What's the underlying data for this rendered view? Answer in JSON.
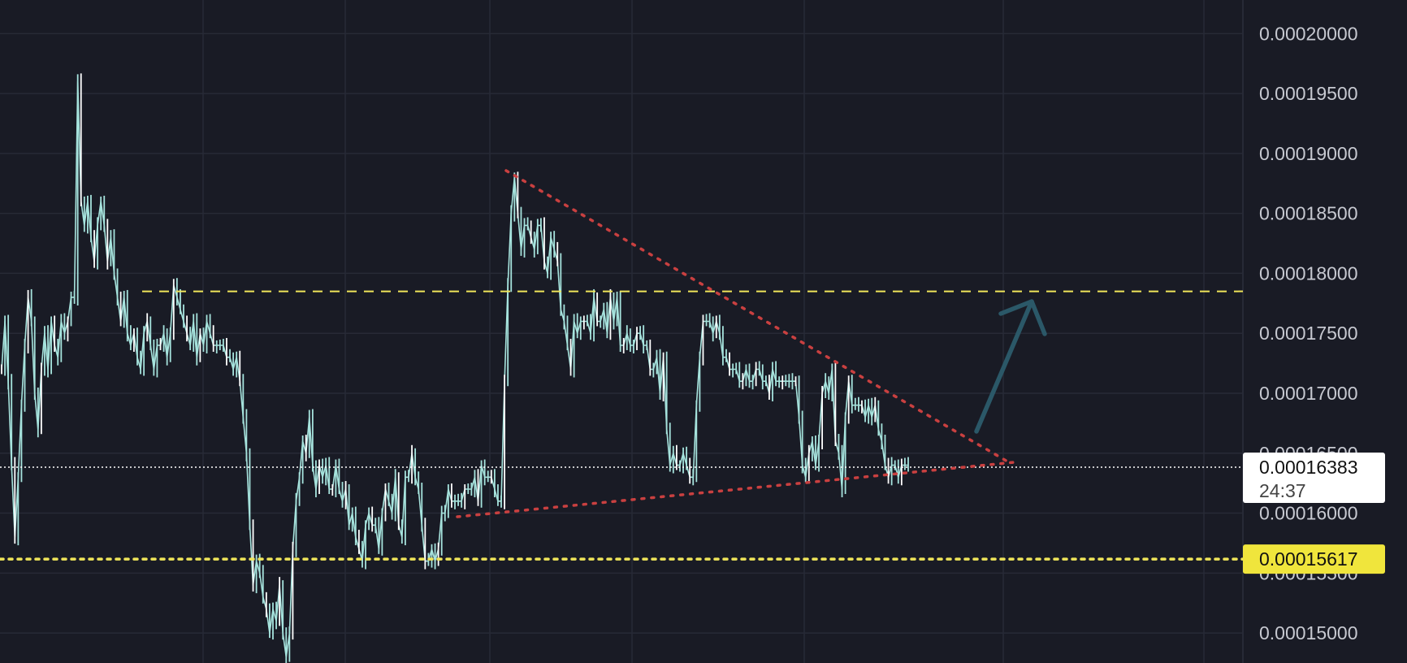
{
  "colors": {
    "background": "#191b25",
    "grid": "#272a36",
    "candle": "#a6e3dd",
    "resistance_line": "#f0e55a",
    "support_line": "#f0e55a",
    "triangle": "#c94040",
    "arrow": "#2b5868",
    "current_price_line": "#ffffff",
    "current_price_tag_bg": "#ffffff",
    "current_price_tag_text": "#111111",
    "support_tag_bg": "#f0e53c",
    "support_tag_text": "#111111",
    "axis_text": "#c7c9d1"
  },
  "chart_data": {
    "type": "line",
    "title": "",
    "xlabel": "",
    "ylabel": "",
    "ylim": [
      0.0001475,
      0.0002028
    ],
    "grid": true,
    "y_axis_position": "right",
    "y_ticks": [
      "0.00020000",
      "0.00019500",
      "0.00019000",
      "0.00018500",
      "0.00018000",
      "0.00017500",
      "0.00017000",
      "0.00016500",
      "0.00016000",
      "0.00015500",
      "0.00015000"
    ],
    "series": [
      {
        "values": [
          0.000172,
          0.000176,
          0.000171,
          0.000164,
          0.000158,
          0.000163,
          0.000169,
          0.000174,
          0.000178,
          0.000176,
          0.00017,
          0.000167,
          0.000172,
          0.000175,
          0.000172,
          0.000176,
          0.000174,
          0.000173,
          0.000176,
          0.000175,
          0.000176,
          0.000178,
          0.000178,
          0.000196,
          0.000186,
          0.000184,
          0.000186,
          0.000183,
          0.000181,
          0.000184,
          0.000186,
          0.000184,
          0.000181,
          0.000183,
          0.00018,
          0.000178,
          0.000176,
          0.000178,
          0.000175,
          0.000174,
          0.000175,
          0.000173,
          0.000172,
          0.000175,
          0.000176,
          0.000174,
          0.000172,
          0.000174,
          0.000174,
          0.000175,
          0.000173,
          0.000175,
          0.000179,
          0.000178,
          0.000177,
          0.000176,
          0.000175,
          0.000174,
          0.000176,
          0.000173,
          0.000175,
          0.000174,
          0.000176,
          0.000175,
          0.000174,
          0.000174,
          0.000174,
          0.000174,
          0.000173,
          0.000173,
          0.000172,
          0.000173,
          0.000171,
          0.000168,
          0.000165,
          0.000159,
          0.000154,
          0.000156,
          0.000155,
          0.000153,
          0.000152,
          0.00015,
          0.000152,
          0.000151,
          0.000154,
          0.00015,
          0.000148,
          0.00015,
          0.000157,
          0.000161,
          0.000163,
          0.000166,
          0.000165,
          0.000168,
          0.000164,
          0.000162,
          0.000164,
          0.000163,
          0.000164,
          0.000162,
          0.000162,
          0.000164,
          0.000162,
          0.000161,
          0.000162,
          0.000159,
          0.00016,
          0.000158,
          0.000157,
          0.000156,
          0.000159,
          0.00016,
          0.000159,
          0.000159,
          0.000157,
          0.00016,
          0.000162,
          0.000161,
          0.00016,
          0.000163,
          0.000159,
          0.000158,
          0.000163,
          0.000163,
          0.000165,
          0.000163,
          0.000162,
          0.000159,
          0.000156,
          0.000156,
          0.000157,
          0.000156,
          0.000157,
          0.00016,
          0.00016,
          0.000162,
          0.000161,
          0.000161,
          0.000161,
          0.000161,
          0.000162,
          0.000162,
          0.000162,
          0.000163,
          0.000161,
          0.000164,
          0.000163,
          0.000163,
          0.000163,
          0.000162,
          0.000161,
          0.000161,
          0.000171,
          0.000179,
          0.000185,
          0.000188,
          0.000185,
          0.000182,
          0.000184,
          0.000184,
          0.000183,
          0.000182,
          0.000184,
          0.000184,
          0.000181,
          0.00018,
          0.000183,
          0.000182,
          0.000181,
          0.000177,
          0.000176,
          0.000174,
          0.000172,
          0.000176,
          0.000175,
          0.000176,
          0.000176,
          0.000176,
          0.000175,
          0.000178,
          0.000176,
          0.000176,
          0.000177,
          0.000175,
          0.000178,
          0.000176,
          0.000178,
          0.000174,
          0.000174,
          0.000175,
          0.000174,
          0.000174,
          0.000175,
          0.000175,
          0.000174,
          0.000174,
          0.000172,
          0.000172,
          0.000173,
          0.00017,
          0.000173,
          0.000167,
          0.000164,
          0.000165,
          0.000164,
          0.000164,
          0.000165,
          0.000164,
          0.000163,
          0.000163,
          0.000169,
          0.000173,
          0.000176,
          0.000176,
          0.000176,
          0.000175,
          0.000176,
          0.000175,
          0.000173,
          0.000173,
          0.000172,
          0.000172,
          0.000172,
          0.000171,
          0.000171,
          0.000172,
          0.000171,
          0.000171,
          0.000172,
          0.000172,
          0.000171,
          0.000171,
          0.00017,
          0.000172,
          0.000171,
          0.000171,
          0.000171,
          0.000171,
          0.000171,
          0.000171,
          0.000171,
          0.000168,
          0.000164,
          0.000163,
          0.000165,
          0.000166,
          0.000164,
          0.000166,
          0.00017,
          0.000171,
          0.00017,
          0.000172,
          0.000166,
          0.000165,
          0.000162,
          0.000168,
          0.000171,
          0.000169,
          0.000169,
          0.000169,
          0.000169,
          0.000168,
          0.000169,
          0.000168,
          0.000169,
          0.000167,
          0.000166,
          0.000164,
          0.000163,
          0.000164,
          0.000164,
          0.000163,
          0.000164,
          0.000164,
          0.000164
        ]
      }
    ],
    "annotations": [
      {
        "type": "horizontal_line",
        "style": "dashed",
        "color": "#f0e55a",
        "value": 0.0001785
      },
      {
        "type": "horizontal_line",
        "style": "dotted",
        "color": "#f0e55a",
        "value": 0.00015617
      },
      {
        "type": "horizontal_line",
        "style": "dotted",
        "color": "#ffffff",
        "value": 0.00016383
      },
      {
        "type": "trendline",
        "style": "dotted",
        "color": "#c94040",
        "role": "descending-resistance"
      },
      {
        "type": "trendline",
        "style": "dotted",
        "color": "#c94040",
        "role": "ascending-support"
      },
      {
        "type": "arrow",
        "color": "#2b5868",
        "direction": "up"
      }
    ]
  },
  "price_tags": {
    "current": {
      "price": "0.00016383",
      "countdown": "24:37"
    },
    "support": {
      "price": "0.00015617"
    }
  }
}
